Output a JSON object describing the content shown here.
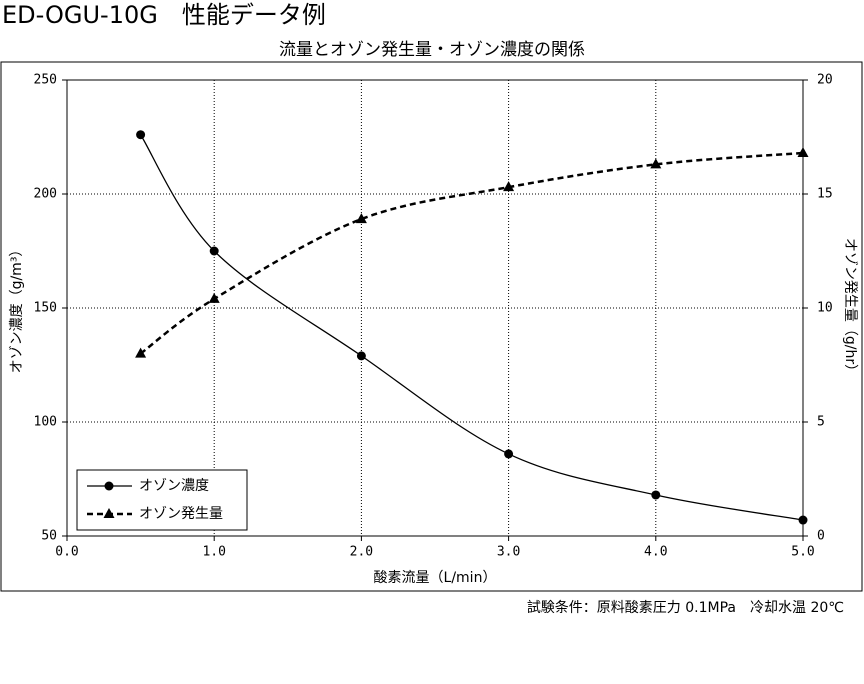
{
  "page_title": "ED-OGU-10G　性能データ例",
  "chart_data": {
    "type": "line",
    "title": "流量とオゾン発生量・オゾン濃度の関係",
    "x_label": "酸素流量（L/min）",
    "y_label": "オゾン濃度（g/m³）",
    "y2_label": "オゾン発生量（g/hr）",
    "xlim": [
      0,
      5
    ],
    "xticks": [
      {
        "value": 0,
        "label": "0.0"
      },
      {
        "value": 1,
        "label": "1.0"
      },
      {
        "value": 2,
        "label": "2.0"
      },
      {
        "value": 3,
        "label": "3.0"
      },
      {
        "value": 4,
        "label": "4.0"
      },
      {
        "value": 5,
        "label": "5.0"
      }
    ],
    "ylim": [
      50,
      250
    ],
    "yticks": [
      50,
      100,
      150,
      200,
      250
    ],
    "y2lim": [
      0,
      20
    ],
    "y2ticks": [
      0,
      5,
      10,
      15,
      20
    ],
    "grid": true,
    "legend": "lower left",
    "series": [
      {
        "name": "オゾン濃度",
        "color": "#000000",
        "marker": "circle",
        "dashed": false,
        "x": [
          0.5,
          1,
          2,
          3,
          4,
          5
        ],
        "values": [
          226,
          175,
          129,
          86,
          68,
          57
        ]
      },
      {
        "name": "オゾン発生量",
        "color": "#000000",
        "marker": "triangle",
        "dashed": true,
        "axis": "y2",
        "x": [
          0.5,
          1,
          2,
          3,
          4,
          5
        ],
        "values": [
          8.0,
          10.4,
          13.9,
          15.3,
          16.3,
          16.8
        ]
      }
    ]
  },
  "footnote": "試験条件：原料酸素圧力 0.1MPa　冷却水温 20℃"
}
